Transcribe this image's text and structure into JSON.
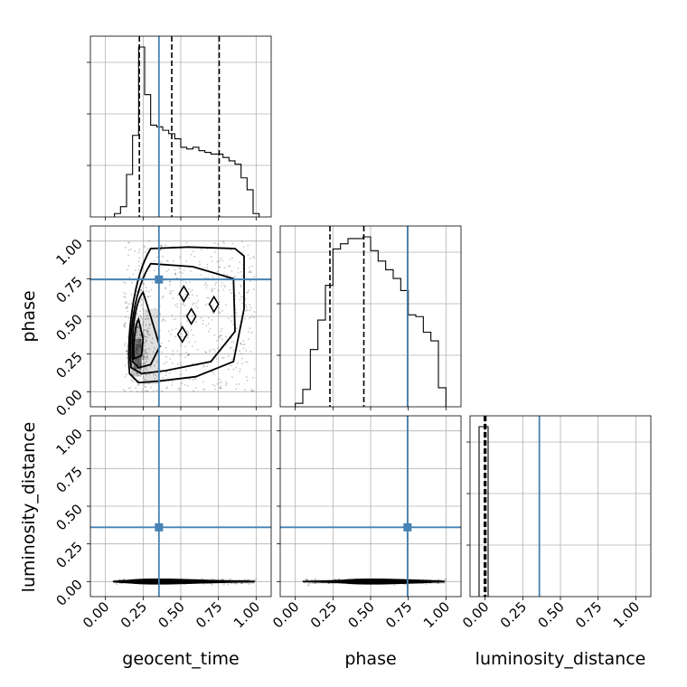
{
  "chart_data": {
    "type": "corner",
    "parameters": [
      "geocent_time",
      "phase",
      "luminosity_distance"
    ],
    "xlabels": [
      "geocent_time",
      "phase",
      "luminosity_distance"
    ],
    "ylabels": [
      "",
      "phase",
      "luminosity_distance"
    ],
    "ticks": [
      0.0,
      0.25,
      0.5,
      0.75,
      1.0
    ],
    "tick_labels": [
      "0.00",
      "0.25",
      "0.50",
      "0.75",
      "1.00"
    ],
    "truths": [
      0.355,
      0.745,
      0.36
    ],
    "truth_color": "#4682b4",
    "line_color": "#000000",
    "grid": true,
    "histograms": [
      {
        "parameter": "geocent_time",
        "xlim": [
          -0.1,
          1.1
        ],
        "bin_edges": [
          0.06,
          0.1,
          0.14,
          0.18,
          0.22,
          0.26,
          0.3,
          0.34,
          0.38,
          0.42,
          0.46,
          0.5,
          0.54,
          0.58,
          0.62,
          0.66,
          0.7,
          0.74,
          0.78,
          0.82,
          0.86,
          0.9,
          0.94,
          0.98,
          1.02
        ],
        "counts": [
          0.02,
          0.06,
          0.25,
          0.48,
          1.0,
          0.72,
          0.54,
          0.53,
          0.51,
          0.49,
          0.46,
          0.41,
          0.4,
          0.41,
          0.39,
          0.38,
          0.37,
          0.37,
          0.35,
          0.33,
          0.31,
          0.23,
          0.16,
          0.02
        ],
        "quantiles": [
          0.225,
          0.44,
          0.755
        ]
      },
      {
        "parameter": "phase",
        "xlim": [
          -0.1,
          1.1
        ],
        "bin_edges": [
          0.0,
          0.05,
          0.1,
          0.15,
          0.2,
          0.25,
          0.3,
          0.35,
          0.4,
          0.45,
          0.5,
          0.55,
          0.6,
          0.65,
          0.7,
          0.75,
          0.8,
          0.85,
          0.9,
          0.95,
          1.0
        ],
        "counts": [
          0.02,
          0.1,
          0.33,
          0.5,
          0.7,
          0.91,
          0.94,
          0.97,
          0.97,
          0.98,
          0.9,
          0.84,
          0.79,
          0.74,
          0.67,
          0.53,
          0.52,
          0.43,
          0.38,
          0.11
        ],
        "quantiles": [
          0.23,
          0.455,
          0.745
        ]
      },
      {
        "parameter": "luminosity_distance",
        "xlim": [
          -0.1,
          1.1
        ],
        "bin_edges": [
          -0.04,
          0.02
        ],
        "counts": [
          1.0
        ],
        "quantiles": [
          -0.005,
          0.0,
          0.005
        ]
      }
    ],
    "panels_2d": [
      {
        "x": "geocent_time",
        "y": "phase",
        "xlim": [
          -0.1,
          1.1
        ],
        "ylim": [
          -0.1,
          1.1
        ],
        "contours": 4
      },
      {
        "x": "geocent_time",
        "y": "luminosity_distance",
        "xlim": [
          -0.1,
          1.1
        ],
        "ylim": [
          -0.1,
          1.1
        ],
        "contours": 4
      },
      {
        "x": "phase",
        "y": "luminosity_distance",
        "xlim": [
          -0.1,
          1.1
        ],
        "ylim": [
          -0.1,
          1.1
        ],
        "contours": 4
      }
    ]
  }
}
